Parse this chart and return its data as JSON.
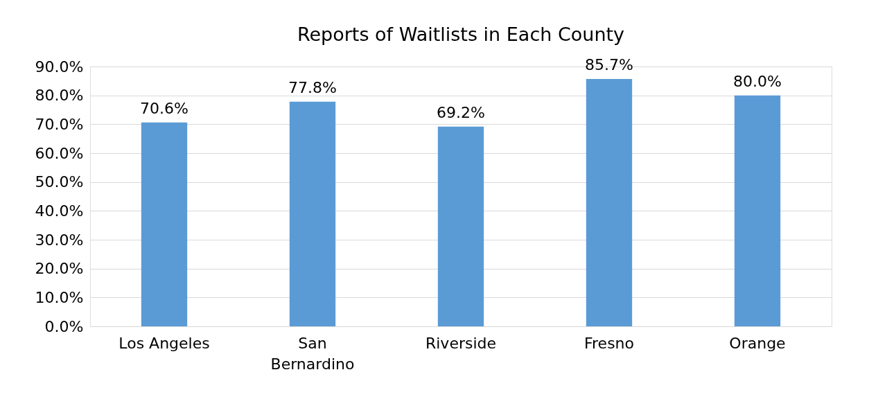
{
  "chart_data": {
    "type": "bar",
    "title": "Reports of Waitlists in Each County",
    "categories": [
      "Los Angeles",
      "San Bernardino",
      "Riverside",
      "Fresno",
      "Orange"
    ],
    "values": [
      70.6,
      77.8,
      69.2,
      85.7,
      80.0
    ],
    "value_labels": [
      "70.6%",
      "77.8%",
      "69.2%",
      "85.7%",
      "80.0%"
    ],
    "color": "#5b9bd5",
    "ylim": [
      0,
      90
    ],
    "yticks": [
      {
        "value": 0,
        "label": "0.0%"
      },
      {
        "value": 10,
        "label": "10.0%"
      },
      {
        "value": 20,
        "label": "20.0%"
      },
      {
        "value": 30,
        "label": "30.0%"
      },
      {
        "value": 40,
        "label": "40.0%"
      },
      {
        "value": 50,
        "label": "50.0%"
      },
      {
        "value": 60,
        "label": "60.0%"
      },
      {
        "value": 70,
        "label": "70.0%"
      },
      {
        "value": 80,
        "label": "80.0%"
      },
      {
        "value": 90,
        "label": "90.0%"
      }
    ],
    "grid": "y"
  }
}
